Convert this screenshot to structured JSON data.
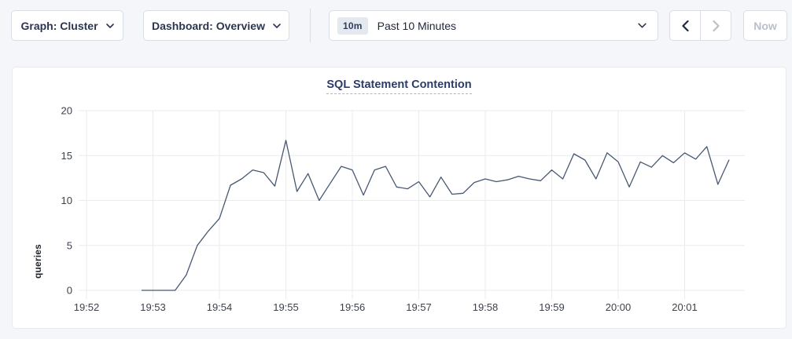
{
  "toolbar": {
    "graph_dropdown_label": "Graph: Cluster",
    "dashboard_dropdown_label": "Dashboard: Overview",
    "time_range_badge": "10m",
    "time_range_label": "Past 10 Minutes",
    "now_button_label": "Now"
  },
  "chart_data": {
    "type": "line",
    "title": "SQL Statement Contention",
    "xlabel": "",
    "ylabel": "queries",
    "ylim": [
      0,
      20
    ],
    "y_ticks": [
      0,
      5,
      10,
      15,
      20
    ],
    "x_ticks": [
      "19:52",
      "19:53",
      "19:54",
      "19:55",
      "19:56",
      "19:57",
      "19:58",
      "19:59",
      "20:00",
      "20:01"
    ],
    "grid": true,
    "legend_position": "none",
    "line_color": "#475872",
    "grid_color": "#e9ebef",
    "tick_label_color": "#3c414b",
    "series": [
      {
        "name": "queries",
        "points": [
          [
            "19:52:50",
            0
          ],
          [
            "19:53:00",
            0
          ],
          [
            "19:53:10",
            0
          ],
          [
            "19:53:20",
            0
          ],
          [
            "19:53:30",
            1.7
          ],
          [
            "19:53:40",
            5.0
          ],
          [
            "19:53:50",
            6.6
          ],
          [
            "19:54:00",
            8.0
          ],
          [
            "19:54:10",
            11.7
          ],
          [
            "19:54:20",
            12.4
          ],
          [
            "19:54:30",
            13.4
          ],
          [
            "19:54:40",
            13.1
          ],
          [
            "19:54:50",
            11.6
          ],
          [
            "19:55:00",
            16.7
          ],
          [
            "19:55:10",
            11.0
          ],
          [
            "19:55:20",
            13.0
          ],
          [
            "19:55:30",
            10.0
          ],
          [
            "19:55:40",
            11.9
          ],
          [
            "19:55:50",
            13.8
          ],
          [
            "19:56:00",
            13.4
          ],
          [
            "19:56:10",
            10.6
          ],
          [
            "19:56:20",
            13.4
          ],
          [
            "19:56:30",
            13.8
          ],
          [
            "19:56:40",
            11.5
          ],
          [
            "19:56:50",
            11.3
          ],
          [
            "19:57:00",
            12.1
          ],
          [
            "19:57:10",
            10.4
          ],
          [
            "19:57:20",
            12.6
          ],
          [
            "19:57:30",
            10.7
          ],
          [
            "19:57:40",
            10.8
          ],
          [
            "19:57:50",
            12.0
          ],
          [
            "19:58:00",
            12.4
          ],
          [
            "19:58:10",
            12.1
          ],
          [
            "19:58:20",
            12.3
          ],
          [
            "19:58:30",
            12.7
          ],
          [
            "19:58:40",
            12.4
          ],
          [
            "19:58:50",
            12.2
          ],
          [
            "19:59:00",
            13.4
          ],
          [
            "19:59:10",
            12.4
          ],
          [
            "19:59:20",
            15.2
          ],
          [
            "19:59:30",
            14.5
          ],
          [
            "19:59:40",
            12.4
          ],
          [
            "19:59:50",
            15.3
          ],
          [
            "20:00:00",
            14.3
          ],
          [
            "20:00:10",
            11.5
          ],
          [
            "20:00:20",
            14.3
          ],
          [
            "20:00:30",
            13.7
          ],
          [
            "20:00:40",
            15.0
          ],
          [
            "20:00:50",
            14.2
          ],
          [
            "20:01:00",
            15.3
          ],
          [
            "20:01:10",
            14.6
          ],
          [
            "20:01:20",
            16.0
          ],
          [
            "20:01:30",
            11.8
          ],
          [
            "20:01:40",
            14.5
          ]
        ]
      }
    ]
  }
}
